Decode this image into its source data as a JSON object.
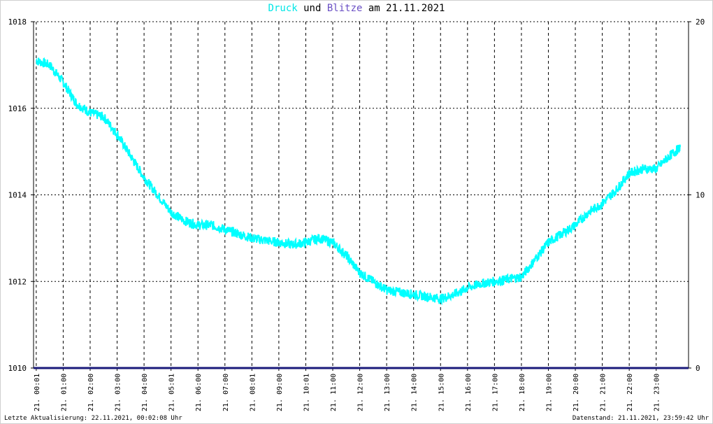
{
  "title": {
    "part1": "Druck",
    "part2": "und",
    "part3": "Blitze",
    "part4": "am 21.11.2021"
  },
  "footer": {
    "left": "Letzte Aktualisierung: 22.11.2021, 00:02:08 Uhr",
    "right": "Datenstand: 21.11.2021, 23:59:42 Uhr"
  },
  "colors": {
    "druck": "#00ffff",
    "blitze": "#1a1a7a",
    "grid": "#000000"
  },
  "chart_data": {
    "type": "line",
    "title": "Druck und Blitze am 21.11.2021",
    "grid": true,
    "x_ticks": [
      "21. 00:01",
      "21. 01:00",
      "21. 02:00",
      "21. 03:00",
      "21. 04:00",
      "21. 05:01",
      "21. 06:00",
      "21. 07:00",
      "21. 08:01",
      "21. 09:00",
      "21. 10:01",
      "21. 11:00",
      "21. 12:00",
      "21. 13:00",
      "21. 14:00",
      "21. 15:00",
      "21. 16:00",
      "21. 17:00",
      "21. 18:00",
      "21. 19:00",
      "21. 20:00",
      "21. 21:00",
      "21. 22:00",
      "21. 23:00"
    ],
    "y_left": {
      "ticks": [
        "1010",
        "1012",
        "1014",
        "1016",
        "1018"
      ],
      "ylim": [
        1010,
        1018
      ]
    },
    "y_right": {
      "ticks": [
        "0",
        "10",
        "20"
      ],
      "ylim": [
        0,
        20
      ]
    },
    "series": [
      {
        "name": "Druck",
        "axis": "left",
        "x": [
          0,
          0.5,
          1,
          1.5,
          2,
          2.5,
          3,
          3.5,
          4,
          4.5,
          5,
          5.5,
          6,
          6.5,
          7,
          7.5,
          8,
          8.5,
          9,
          9.5,
          10,
          10.5,
          11,
          11.5,
          12,
          12.5,
          13,
          13.5,
          14,
          14.5,
          15,
          15.5,
          16,
          16.5,
          17,
          17.5,
          18,
          18.5,
          19,
          19.5,
          20,
          20.5,
          21,
          21.5,
          22,
          22.5,
          23,
          23.5,
          23.9
        ],
        "y": [
          1017.1,
          1017.0,
          1016.6,
          1016.1,
          1015.9,
          1015.8,
          1015.4,
          1014.9,
          1014.4,
          1014.0,
          1013.6,
          1013.4,
          1013.3,
          1013.3,
          1013.2,
          1013.1,
          1013.0,
          1012.95,
          1012.9,
          1012.85,
          1012.9,
          1013.0,
          1012.9,
          1012.6,
          1012.2,
          1012.0,
          1011.8,
          1011.75,
          1011.7,
          1011.65,
          1011.6,
          1011.7,
          1011.85,
          1011.95,
          1012.0,
          1012.05,
          1012.1,
          1012.5,
          1012.9,
          1013.1,
          1013.3,
          1013.6,
          1013.8,
          1014.1,
          1014.5,
          1014.6,
          1014.6,
          1014.9,
          1015.1
        ]
      },
      {
        "name": "Blitze",
        "axis": "right",
        "x": [
          0,
          24
        ],
        "y": [
          0,
          0
        ]
      }
    ],
    "x_range": [
      -0.1,
      24.2
    ]
  }
}
